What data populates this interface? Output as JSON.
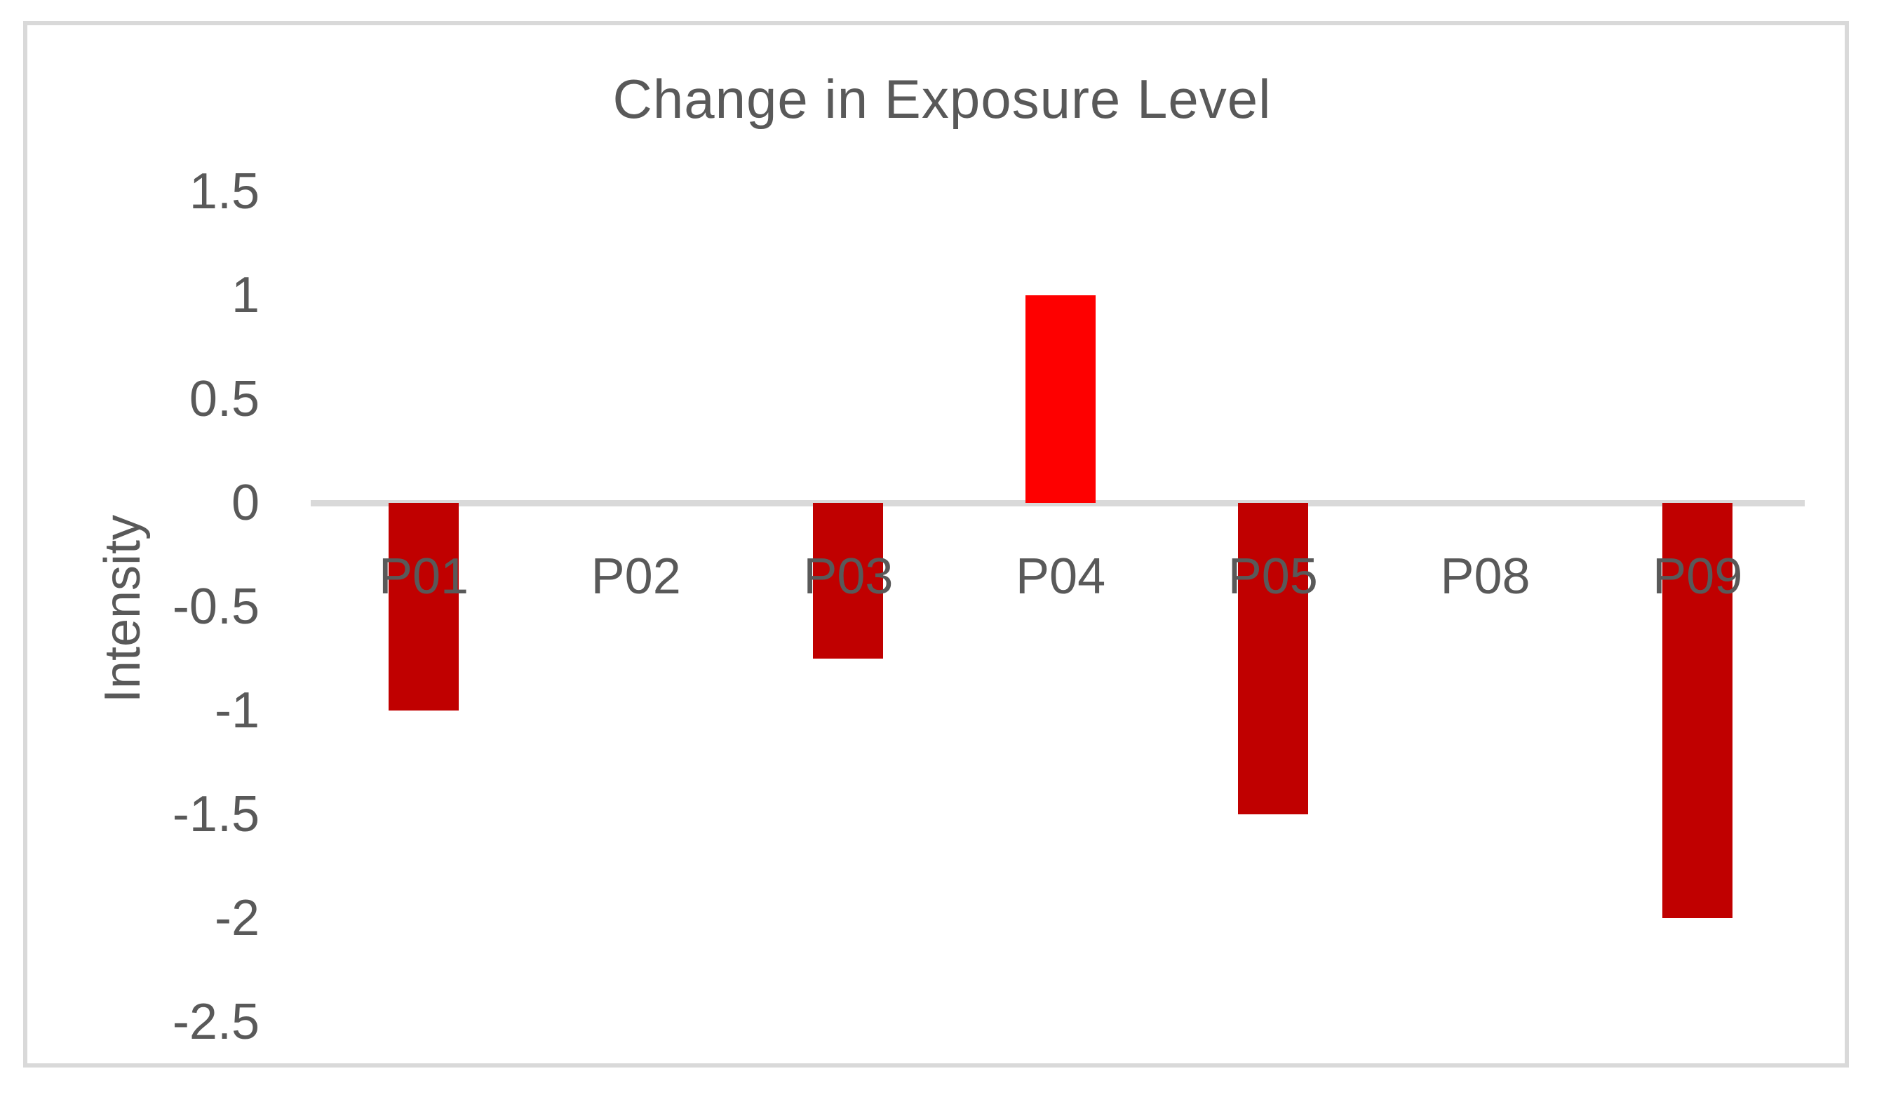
{
  "chart_data": {
    "type": "bar",
    "title": "Change in Exposure Level",
    "xlabel": "",
    "ylabel": "Intensity",
    "categories": [
      "P01",
      "P02",
      "P03",
      "P04",
      "P05",
      "P08",
      "P09"
    ],
    "values": [
      -1,
      0,
      -0.75,
      1,
      -1.5,
      0,
      -2
    ],
    "yticks": [
      1.5,
      1,
      0.5,
      0,
      -0.5,
      -1,
      -1.5,
      -2,
      -2.5
    ],
    "ylim": [
      -2.5,
      1.5
    ],
    "grid": false,
    "legend_position": "none",
    "colors": {
      "negative_bar": "#c00000",
      "positive_bar": "#fe0000",
      "axis_line": "#d9d9d9",
      "frame_border": "#d9d9d9",
      "text": "#595959",
      "background": "#ffffff"
    }
  }
}
